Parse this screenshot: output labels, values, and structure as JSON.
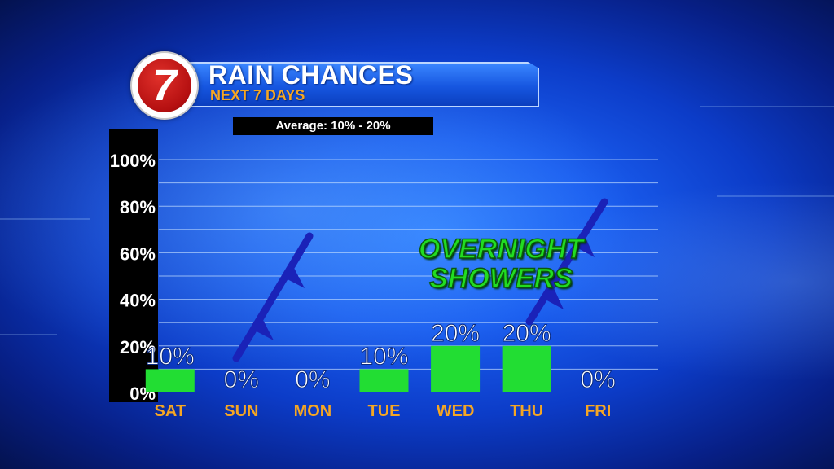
{
  "header": {
    "logo_text": "7",
    "title": "RAIN CHANCES",
    "subtitle": "NEXT 7 DAYS"
  },
  "average_label": "Average: 10% - 20%",
  "annotation": [
    "OVERNIGHT",
    "SHOWERS"
  ],
  "colors": {
    "bar": "#22dd33",
    "day_label": "#f5a623",
    "value_label": "#ffffff",
    "front": "#1a22b8"
  },
  "chart_data": {
    "type": "bar",
    "title": "RAIN CHANCES",
    "subtitle": "NEXT 7 DAYS",
    "categories": [
      "SAT",
      "SUN",
      "MON",
      "TUE",
      "WED",
      "THU",
      "FRI"
    ],
    "values": [
      10,
      0,
      0,
      10,
      20,
      20,
      0
    ],
    "value_labels": [
      "10%",
      "0%",
      "0%",
      "10%",
      "20%",
      "20%",
      "0%"
    ],
    "y_ticks": [
      "0%",
      "20%",
      "40%",
      "60%",
      "80%",
      "100%"
    ],
    "ylim": [
      0,
      100
    ],
    "grid": true,
    "legend": "none"
  }
}
